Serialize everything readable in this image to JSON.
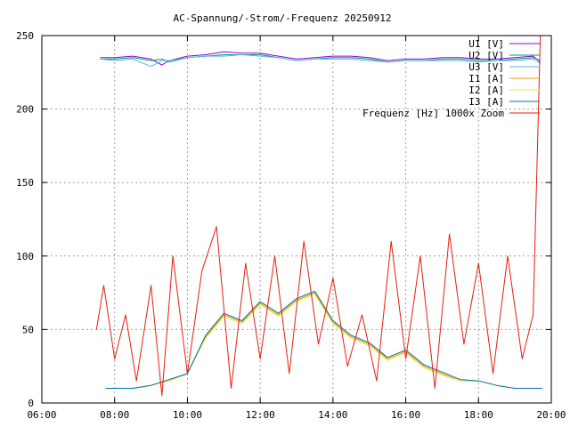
{
  "chart_data": {
    "type": "line",
    "title": "AC-Spannung/-Strom/-Frequenz 20250912",
    "xlabel": "",
    "ylabel": "",
    "xlim": [
      6,
      20
    ],
    "ylim": [
      0,
      250
    ],
    "xticks": [
      {
        "v": 6,
        "label": "06:00"
      },
      {
        "v": 8,
        "label": "08:00"
      },
      {
        "v": 10,
        "label": "10:00"
      },
      {
        "v": 12,
        "label": "12:00"
      },
      {
        "v": 14,
        "label": "14:00"
      },
      {
        "v": 16,
        "label": "16:00"
      },
      {
        "v": 18,
        "label": "18:00"
      },
      {
        "v": 20,
        "label": "20:00"
      }
    ],
    "yticks": [
      {
        "v": 0,
        "label": "0"
      },
      {
        "v": 50,
        "label": "50"
      },
      {
        "v": 100,
        "label": "100"
      },
      {
        "v": 150,
        "label": "150"
      },
      {
        "v": 200,
        "label": "200"
      },
      {
        "v": 250,
        "label": "250"
      }
    ],
    "grid": true,
    "legend_position": "top-right",
    "series": [
      {
        "name": "U1 [V]",
        "color": "#9400d3",
        "x": [
          7.6,
          8.0,
          8.5,
          9.0,
          9.3,
          9.5,
          10.0,
          10.5,
          11.0,
          11.5,
          12.0,
          12.5,
          13.0,
          13.5,
          14.0,
          14.5,
          15.0,
          15.5,
          16.0,
          16.5,
          17.0,
          17.5,
          18.0,
          18.5,
          19.0,
          19.5,
          19.7
        ],
        "values": [
          235,
          235,
          236,
          234,
          230,
          233,
          236,
          237,
          239,
          238,
          238,
          236,
          234,
          235,
          236,
          236,
          235,
          233,
          234,
          234,
          235,
          235,
          234,
          234,
          235,
          236,
          232
        ]
      },
      {
        "name": "U2 [V]",
        "color": "#009e73",
        "x": [
          7.6,
          8.0,
          8.5,
          9.0,
          9.3,
          9.5,
          10.0,
          10.5,
          11.0,
          11.5,
          12.0,
          12.5,
          13.0,
          13.5,
          14.0,
          14.5,
          15.0,
          15.5,
          16.0,
          16.5,
          17.0,
          17.5,
          18.0,
          18.5,
          19.0,
          19.5,
          19.7
        ],
        "values": [
          234,
          234,
          235,
          233,
          234,
          232,
          235,
          236,
          237,
          237,
          237,
          235,
          233,
          234,
          235,
          235,
          234,
          232,
          233,
          233,
          234,
          234,
          233,
          233,
          234,
          235,
          233
        ]
      },
      {
        "name": "U3 [V]",
        "color": "#56b4e9",
        "x": [
          7.6,
          8.0,
          8.5,
          9.0,
          9.3,
          9.5,
          10.0,
          10.5,
          11.0,
          11.5,
          12.0,
          12.5,
          13.0,
          13.5,
          14.0,
          14.5,
          15.0,
          15.5,
          16.0,
          16.5,
          17.0,
          17.5,
          18.0,
          18.5,
          19.0,
          19.5,
          19.7
        ],
        "values": [
          234,
          233,
          234,
          229,
          233,
          233,
          235,
          236,
          236,
          237,
          236,
          235,
          233,
          234,
          234,
          234,
          233,
          232,
          233,
          233,
          233,
          233,
          232,
          233,
          233,
          234,
          231
        ]
      },
      {
        "name": "I1 [A]",
        "color": "#e69f00",
        "x": [
          7.75,
          8.5,
          9.0,
          9.5,
          10.0,
          10.5,
          11.0,
          11.5,
          12.0,
          12.5,
          13.0,
          13.5,
          14.0,
          14.5,
          15.0,
          15.5,
          16.0,
          16.5,
          17.0,
          17.5,
          18.0,
          18.5,
          19.0,
          19.5,
          19.75
        ],
        "values": [
          10,
          10,
          12,
          15,
          20,
          45,
          60,
          55,
          68,
          60,
          70,
          75,
          55,
          45,
          40,
          30,
          35,
          25,
          20,
          15,
          15,
          12,
          10,
          10,
          10
        ]
      },
      {
        "name": "I2 [A]",
        "color": "#f0e442",
        "x": [
          7.75,
          8.5,
          9.0,
          9.5,
          10.0,
          10.5,
          11.0,
          11.5,
          12.0,
          12.5,
          13.0,
          13.5,
          14.0,
          14.5,
          15.0,
          15.5,
          16.0,
          16.5,
          17.0,
          17.5,
          18.0,
          18.5,
          19.0,
          19.5,
          19.75
        ],
        "values": [
          10,
          10,
          12,
          15,
          20,
          44,
          59,
          54,
          67,
          59,
          69,
          74,
          54,
          44,
          39,
          29,
          34,
          24,
          19,
          15,
          15,
          12,
          10,
          10,
          10
        ]
      },
      {
        "name": "I3 [A]",
        "color": "#0072b2",
        "x": [
          7.75,
          8.5,
          9.0,
          9.5,
          10.0,
          10.5,
          11.0,
          11.5,
          12.0,
          12.5,
          13.0,
          13.5,
          14.0,
          14.5,
          15.0,
          15.5,
          16.0,
          16.5,
          17.0,
          17.5,
          18.0,
          18.5,
          19.0,
          19.5,
          19.75
        ],
        "values": [
          10,
          10,
          12,
          16,
          20,
          46,
          61,
          56,
          69,
          61,
          71,
          76,
          56,
          46,
          41,
          31,
          36,
          26,
          21,
          16,
          15,
          12,
          10,
          10,
          10
        ]
      },
      {
        "name": "Frequenz [Hz] 1000x Zoom",
        "color": "#e51e10",
        "x": [
          7.5,
          7.7,
          8.0,
          8.3,
          8.6,
          9.0,
          9.3,
          9.6,
          10.0,
          10.4,
          10.8,
          11.2,
          11.6,
          12.0,
          12.4,
          12.8,
          13.2,
          13.6,
          14.0,
          14.4,
          14.8,
          15.2,
          15.6,
          16.0,
          16.4,
          16.8,
          17.2,
          17.6,
          18.0,
          18.4,
          18.8,
          19.2,
          19.5,
          19.7,
          19.72
        ],
        "values": [
          50,
          80,
          30,
          60,
          15,
          80,
          5,
          100,
          20,
          90,
          120,
          10,
          95,
          30,
          100,
          20,
          110,
          40,
          85,
          25,
          60,
          15,
          110,
          30,
          100,
          10,
          115,
          40,
          95,
          20,
          100,
          30,
          60,
          250,
          250
        ]
      }
    ]
  }
}
